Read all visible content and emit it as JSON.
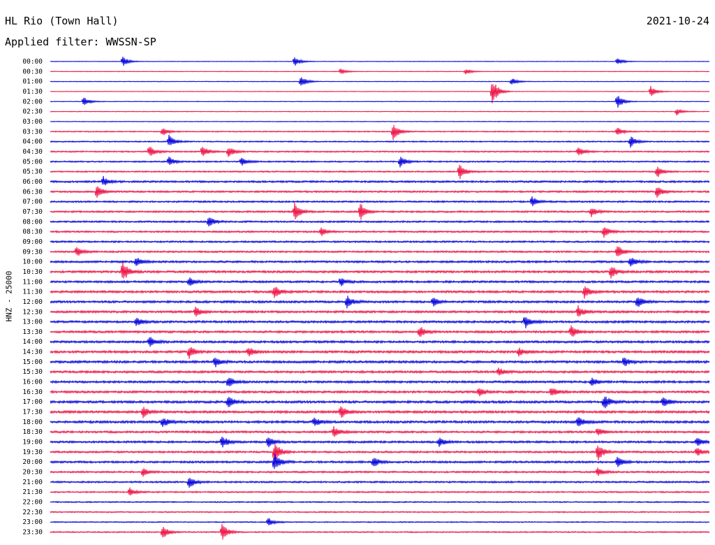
{
  "header": {
    "station": "HL Rio (Town Hall)",
    "date": "2021-10-24",
    "filter": "Applied filter: WWSSN-SP"
  },
  "chart_data": {
    "type": "line",
    "title": "HL Rio (Town Hall)",
    "subtitle": "Applied filter: WWSSN-SP",
    "date": "2021-10-24",
    "ylabel": "HNZ - 25000",
    "xlabel": "",
    "tick_labels": [
      "00:00",
      "00:30",
      "01:00",
      "01:30",
      "02:00",
      "02:30",
      "03:00",
      "03:30",
      "04:00",
      "04:30",
      "05:00",
      "05:30",
      "06:00",
      "06:30",
      "07:00",
      "07:30",
      "08:00",
      "08:30",
      "09:00",
      "09:30",
      "10:00",
      "10:30",
      "11:00",
      "11:30",
      "12:00",
      "12:30",
      "13:00",
      "13:30",
      "14:00",
      "14:30",
      "15:00",
      "15:30",
      "16:00",
      "16:30",
      "17:00",
      "17:30",
      "18:00",
      "18:30",
      "19:00",
      "19:30",
      "20:00",
      "20:30",
      "21:00",
      "21:30",
      "22:00",
      "22:30",
      "23:00",
      "23:30"
    ],
    "trace_colors": [
      "#0000dd",
      "#ee1144"
    ],
    "trace_duration_minutes": 30,
    "grid": false,
    "legend": "none",
    "noise_level": [
      0.18,
      0.2,
      0.2,
      0.18,
      0.2,
      0.22,
      0.22,
      0.35,
      0.4,
      0.45,
      0.45,
      0.45,
      0.6,
      0.55,
      0.55,
      0.55,
      0.55,
      0.55,
      0.55,
      0.55,
      0.65,
      0.7,
      0.65,
      0.7,
      0.7,
      0.7,
      0.7,
      0.7,
      0.7,
      0.75,
      0.75,
      0.7,
      0.7,
      0.7,
      0.75,
      0.75,
      0.75,
      0.65,
      0.65,
      0.6,
      0.65,
      0.55,
      0.55,
      0.45,
      0.4,
      0.4,
      0.35,
      0.4
    ],
    "events": [
      [
        0,
        0.11,
        1.2
      ],
      [
        0,
        0.37,
        1.3
      ],
      [
        0,
        0.86,
        0.9
      ],
      [
        1,
        0.44,
        0.8
      ],
      [
        1,
        0.63,
        0.7
      ],
      [
        2,
        0.38,
        1.4
      ],
      [
        2,
        0.7,
        0.9
      ],
      [
        3,
        0.67,
        3.6
      ],
      [
        3,
        0.91,
        1.5
      ],
      [
        4,
        0.05,
        1.3
      ],
      [
        4,
        0.86,
        1.9
      ],
      [
        5,
        0.95,
        0.9
      ],
      [
        7,
        0.17,
        1.1
      ],
      [
        7,
        0.52,
        2.2
      ],
      [
        7,
        0.86,
        1.1
      ],
      [
        8,
        0.18,
        1.5
      ],
      [
        8,
        0.88,
        1.4
      ],
      [
        9,
        0.15,
        1.6
      ],
      [
        9,
        0.23,
        1.5
      ],
      [
        9,
        0.27,
        1.4
      ],
      [
        9,
        0.8,
        1.4
      ],
      [
        10,
        0.18,
        1.1
      ],
      [
        10,
        0.29,
        1.1
      ],
      [
        10,
        0.53,
        1.5
      ],
      [
        11,
        0.62,
        2.1
      ],
      [
        11,
        0.92,
        1.6
      ],
      [
        12,
        0.08,
        1.2
      ],
      [
        13,
        0.07,
        1.9
      ],
      [
        13,
        0.92,
        1.6
      ],
      [
        14,
        0.73,
        1.4
      ],
      [
        15,
        0.37,
        2.4
      ],
      [
        15,
        0.47,
        2.2
      ],
      [
        15,
        0.82,
        1.3
      ],
      [
        16,
        0.24,
        1.4
      ],
      [
        17,
        0.41,
        1.1
      ],
      [
        17,
        0.84,
        1.5
      ],
      [
        19,
        0.04,
        1.3
      ],
      [
        19,
        0.86,
        1.6
      ],
      [
        20,
        0.13,
        1.2
      ],
      [
        20,
        0.88,
        1.2
      ],
      [
        21,
        0.11,
        2.4
      ],
      [
        21,
        0.85,
        1.8
      ],
      [
        22,
        0.21,
        1.3
      ],
      [
        22,
        0.44,
        1.1
      ],
      [
        23,
        0.34,
        1.5
      ],
      [
        23,
        0.81,
        1.5
      ],
      [
        24,
        0.45,
        1.6
      ],
      [
        24,
        0.58,
        1.2
      ],
      [
        24,
        0.89,
        1.6
      ],
      [
        25,
        0.22,
        1.2
      ],
      [
        25,
        0.8,
        1.7
      ],
      [
        26,
        0.72,
        1.6
      ],
      [
        26,
        0.13,
        1.1
      ],
      [
        27,
        0.56,
        1.5
      ],
      [
        27,
        0.79,
        1.5
      ],
      [
        28,
        0.15,
        1.2
      ],
      [
        29,
        0.21,
        1.7
      ],
      [
        29,
        0.3,
        1.3
      ],
      [
        29,
        0.71,
        1.1
      ],
      [
        30,
        0.25,
        1.2
      ],
      [
        30,
        0.87,
        1.3
      ],
      [
        31,
        0.68,
        1.0
      ],
      [
        32,
        0.27,
        1.3
      ],
      [
        32,
        0.82,
        1.2
      ],
      [
        33,
        0.65,
        1.1
      ],
      [
        33,
        0.76,
        1.2
      ],
      [
        34,
        0.27,
        1.5
      ],
      [
        34,
        0.84,
        1.8
      ],
      [
        34,
        0.93,
        1.4
      ],
      [
        35,
        0.14,
        1.5
      ],
      [
        35,
        0.44,
        1.8
      ],
      [
        36,
        0.17,
        1.4
      ],
      [
        36,
        0.4,
        1.2
      ],
      [
        36,
        0.8,
        1.5
      ],
      [
        37,
        0.43,
        1.3
      ],
      [
        37,
        0.83,
        1.2
      ],
      [
        38,
        0.26,
        1.7
      ],
      [
        38,
        0.33,
        1.5
      ],
      [
        38,
        0.59,
        1.1
      ],
      [
        38,
        0.98,
        1.2
      ],
      [
        39,
        0.34,
        2.6
      ],
      [
        39,
        0.83,
        2.3
      ],
      [
        39,
        0.98,
        1.2
      ],
      [
        40,
        0.34,
        2.2
      ],
      [
        40,
        0.49,
        1.3
      ],
      [
        40,
        0.86,
        1.4
      ],
      [
        41,
        0.14,
        1.1
      ],
      [
        41,
        0.83,
        1.1
      ],
      [
        42,
        0.21,
        1.6
      ],
      [
        43,
        0.12,
        1.1
      ],
      [
        46,
        0.33,
        1.1
      ],
      [
        47,
        0.26,
        2.4
      ],
      [
        47,
        0.17,
        1.9
      ]
    ]
  }
}
